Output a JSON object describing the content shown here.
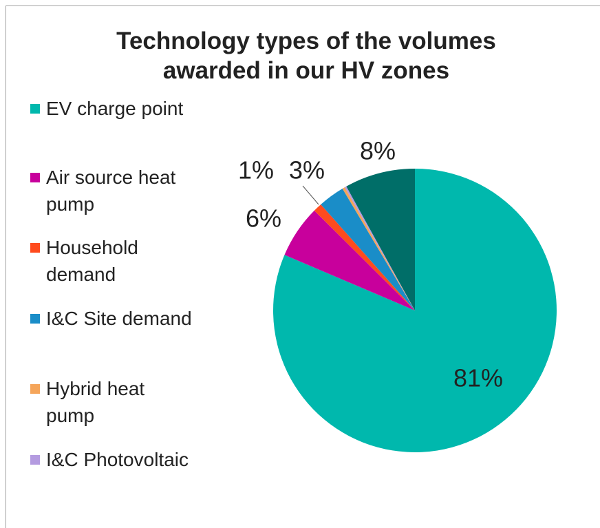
{
  "chart_data": {
    "type": "pie",
    "title": "Technology types of the volumes awarded in our HV zones",
    "categories": [
      "EV charge point",
      "Air source heat pump",
      "Household demand",
      "I&C Site demand",
      "Hybrid heat pump",
      "I&C Photovoltaic",
      null
    ],
    "values": [
      81,
      6,
      1,
      3,
      0.3,
      0.2,
      8
    ],
    "value_labels": [
      "81%",
      "6%",
      "1%",
      "3%",
      null,
      null,
      "8%"
    ],
    "colors": [
      "#00b8ad",
      "#c8009c",
      "#ff4b1e",
      "#1a8dc8",
      "#f5a55a",
      "#b49be0",
      "#006e68"
    ],
    "legend": "left"
  }
}
